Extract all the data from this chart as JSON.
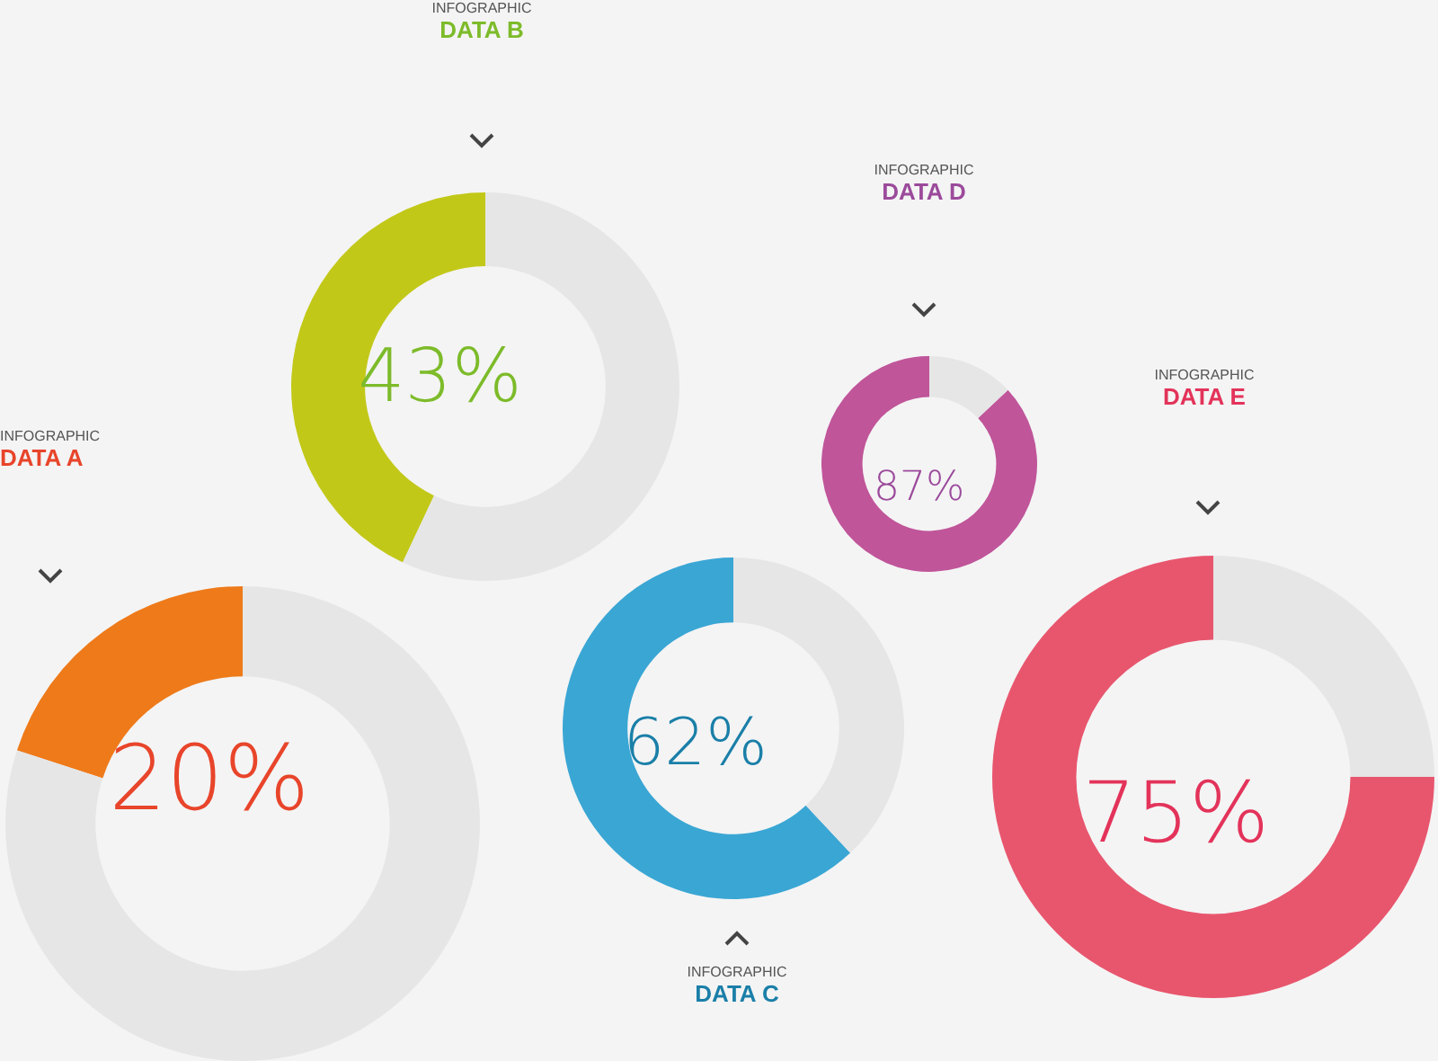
{
  "chart_data": [
    {
      "type": "donut",
      "subtitle": "INFOGRAPHIC",
      "title": "DATA A",
      "categories": [
        null,
        null
      ],
      "values": [
        20,
        80
      ],
      "colors": [
        "#ee7a1a",
        "#e6e6e6"
      ],
      "value_labels": [
        "20%",
        null
      ]
    },
    {
      "type": "donut",
      "subtitle": "INFOGRAPHIC",
      "title": "DATA B",
      "categories": [
        null,
        null
      ],
      "values": [
        43,
        57
      ],
      "colors": [
        "#c2c818",
        "#e6e6e6"
      ],
      "value_labels": [
        "43%",
        null
      ]
    },
    {
      "type": "donut",
      "subtitle": "INFOGRAPHIC",
      "title": "DATA C",
      "categories": [
        null,
        null
      ],
      "values": [
        62,
        38
      ],
      "colors": [
        "#3aa6d4",
        "#e6e6e6"
      ],
      "value_labels": [
        "62%",
        null
      ]
    },
    {
      "type": "donut",
      "subtitle": "INFOGRAPHIC",
      "title": "DATA D",
      "categories": [
        null,
        null
      ],
      "values": [
        87,
        13
      ],
      "colors": [
        "#c0559a",
        "#e6e6e6"
      ],
      "value_labels": [
        "87%",
        null
      ]
    },
    {
      "type": "donut",
      "subtitle": "INFOGRAPHIC",
      "title": "DATA E",
      "categories": [
        null,
        null
      ],
      "values": [
        75,
        25
      ],
      "colors": [
        "#e8566e",
        "#e6e6e6"
      ],
      "value_labels": [
        "75%",
        null
      ]
    }
  ]
}
